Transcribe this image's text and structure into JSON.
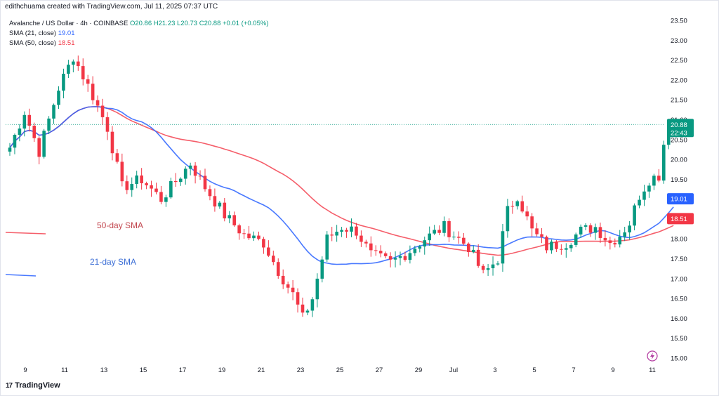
{
  "header": {
    "credit": "edithchuama created with TradingView.com, Jul 11, 2025 07:37 UTC"
  },
  "legend": {
    "symbol": "Avalanche / US Dollar · 4h · COINBASE",
    "ohlc": "O20.86  H21.23  L20.73  C20.88  +0.01 (+0.05%)",
    "sma21_label": "SMA (21, close)",
    "sma21_value": "19.01",
    "sma50_label": "SMA (50, close)",
    "sma50_value": "18.51"
  },
  "footer": {
    "logo_text": "TradingView",
    "logo_mark": "17"
  },
  "colors": {
    "up": "#089981",
    "down": "#f23645",
    "sma21": "#2962ff",
    "sma50": "#f23645",
    "price_line": "#089981",
    "axis_text": "#131722"
  },
  "chart_data": {
    "type": "candlestick",
    "ylim": [
      15.0,
      23.5
    ],
    "y_ticks": [
      "15.00",
      "15.50",
      "16.00",
      "16.50",
      "17.00",
      "17.50",
      "18.00",
      "18.50",
      "19.00",
      "19.50",
      "20.00",
      "20.50",
      "21.00",
      "21.50",
      "22.00",
      "22.50",
      "23.00",
      "23.50"
    ],
    "x_ticks": [
      "9",
      "11",
      "13",
      "15",
      "17",
      "19",
      "21",
      "23",
      "25",
      "27",
      "29",
      "Jul",
      "3",
      "5",
      "7",
      "9",
      "11"
    ],
    "price_labels": {
      "last": "20.88",
      "countdown": "22:43",
      "sma21": "19.01",
      "sma50": "18.51"
    },
    "annotations": [
      "50-day SMA",
      "21-day SMA"
    ],
    "keypoints": [
      {
        "x": 0,
        "y": 20.3
      },
      {
        "x": 3,
        "y": 21.2
      },
      {
        "x": 6,
        "y": 20.2
      },
      {
        "x": 10,
        "y": 21.8
      },
      {
        "x": 13,
        "y": 22.6
      },
      {
        "x": 17,
        "y": 21.6
      },
      {
        "x": 20,
        "y": 20.8
      },
      {
        "x": 23,
        "y": 19.3
      },
      {
        "x": 27,
        "y": 19.5
      },
      {
        "x": 31,
        "y": 19.0
      },
      {
        "x": 35,
        "y": 19.6
      },
      {
        "x": 37,
        "y": 19.9
      },
      {
        "x": 40,
        "y": 19.3
      },
      {
        "x": 44,
        "y": 18.6
      },
      {
        "x": 48,
        "y": 18.1
      },
      {
        "x": 52,
        "y": 17.9
      },
      {
        "x": 55,
        "y": 17.2
      },
      {
        "x": 58,
        "y": 16.6
      },
      {
        "x": 60,
        "y": 16.0
      },
      {
        "x": 62,
        "y": 16.5
      },
      {
        "x": 65,
        "y": 18.0
      },
      {
        "x": 68,
        "y": 18.3
      },
      {
        "x": 71,
        "y": 18.2
      },
      {
        "x": 74,
        "y": 17.6
      },
      {
        "x": 78,
        "y": 17.4
      },
      {
        "x": 82,
        "y": 17.7
      },
      {
        "x": 85,
        "y": 18.0
      },
      {
        "x": 89,
        "y": 18.3
      },
      {
        "x": 91,
        "y": 18.1
      },
      {
        "x": 94,
        "y": 17.8
      },
      {
        "x": 97,
        "y": 17.1
      },
      {
        "x": 100,
        "y": 17.5
      },
      {
        "x": 102,
        "y": 18.7
      },
      {
        "x": 104,
        "y": 19.1
      },
      {
        "x": 107,
        "y": 18.2
      },
      {
        "x": 110,
        "y": 17.8
      },
      {
        "x": 114,
        "y": 17.9
      },
      {
        "x": 117,
        "y": 18.2
      },
      {
        "x": 120,
        "y": 18.3
      },
      {
        "x": 123,
        "y": 17.9
      },
      {
        "x": 125,
        "y": 18.1
      },
      {
        "x": 127,
        "y": 18.4
      },
      {
        "x": 129,
        "y": 19.1
      },
      {
        "x": 131,
        "y": 19.5
      },
      {
        "x": 133,
        "y": 19.6
      },
      {
        "x": 134,
        "y": 20.4
      },
      {
        "x": 135,
        "y": 20.8
      },
      {
        "x": 136,
        "y": 20.88
      }
    ]
  }
}
